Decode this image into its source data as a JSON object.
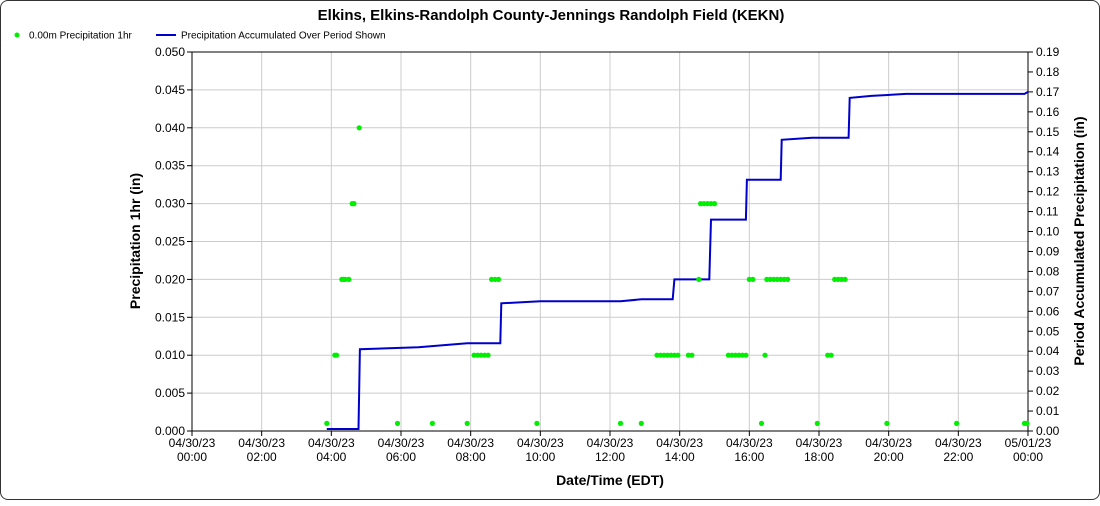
{
  "chart_data": {
    "type": "scatter",
    "title": "Elkins, Elkins-Randolph County-Jennings Randolph Field (KEKN)",
    "xlabel": "Date/Time (EDT)",
    "ylabel": "Precipitation 1hr (in)",
    "y2label": "Period Accumulated Precipitation (in)",
    "xlim": [
      0,
      24
    ],
    "ylim": [
      0,
      0.05
    ],
    "y2lim": [
      0,
      0.19
    ],
    "grid": true,
    "legend_position": "top-left",
    "x_ticks": [
      {
        "value": 0,
        "date": "04/30/23",
        "time": "00:00"
      },
      {
        "value": 2,
        "date": "04/30/23",
        "time": "02:00"
      },
      {
        "value": 4,
        "date": "04/30/23",
        "time": "04:00"
      },
      {
        "value": 6,
        "date": "04/30/23",
        "time": "06:00"
      },
      {
        "value": 8,
        "date": "04/30/23",
        "time": "08:00"
      },
      {
        "value": 10,
        "date": "04/30/23",
        "time": "10:00"
      },
      {
        "value": 12,
        "date": "04/30/23",
        "time": "12:00"
      },
      {
        "value": 14,
        "date": "04/30/23",
        "time": "14:00"
      },
      {
        "value": 16,
        "date": "04/30/23",
        "time": "16:00"
      },
      {
        "value": 18,
        "date": "04/30/23",
        "time": "18:00"
      },
      {
        "value": 20,
        "date": "04/30/23",
        "time": "20:00"
      },
      {
        "value": 22,
        "date": "04/30/23",
        "time": "22:00"
      },
      {
        "value": 24,
        "date": "05/01/23",
        "time": "00:00"
      }
    ],
    "y_ticks": [
      "0.000",
      "0.005",
      "0.010",
      "0.015",
      "0.020",
      "0.025",
      "0.030",
      "0.035",
      "0.040",
      "0.045",
      "0.050"
    ],
    "y2_ticks": [
      "0.00",
      "0.01",
      "0.02",
      "0.03",
      "0.04",
      "0.05",
      "0.06",
      "0.07",
      "0.08",
      "0.09",
      "0.10",
      "0.11",
      "0.12",
      "0.13",
      "0.14",
      "0.15",
      "0.16",
      "0.17",
      "0.18",
      "0.19"
    ],
    "series": [
      {
        "name": "0.00m Precipitation 1hr",
        "color": "#00ee00",
        "axis": "left",
        "x": [
          3.87,
          4.1,
          4.15,
          4.3,
          4.35,
          4.4,
          4.5,
          4.6,
          4.65,
          4.8,
          5.9,
          6.9,
          7.9,
          8.1,
          8.2,
          8.3,
          8.4,
          8.5,
          8.6,
          8.7,
          8.8,
          9.9,
          12.3,
          12.9,
          13.35,
          13.45,
          13.55,
          13.65,
          13.75,
          13.85,
          13.95,
          14.25,
          14.35,
          14.55,
          14.6,
          14.7,
          14.8,
          14.9,
          15,
          15.4,
          15.5,
          15.6,
          15.7,
          15.8,
          15.9,
          16.0,
          16.1,
          16.35,
          16.45,
          16.5,
          16.6,
          16.7,
          16.8,
          16.9,
          17.0,
          17.1,
          17.95,
          18.25,
          18.35,
          18.45,
          18.55,
          18.65,
          18.75,
          19.95,
          21.95,
          23.9,
          23.97
        ],
        "y": [
          0.001,
          0.01,
          0.01,
          0.02,
          0.02,
          0.02,
          0.02,
          0.03,
          0.03,
          0.04,
          0.001,
          0.001,
          0.001,
          0.01,
          0.01,
          0.01,
          0.01,
          0.01,
          0.02,
          0.02,
          0.02,
          0.001,
          0.001,
          0.001,
          0.01,
          0.01,
          0.01,
          0.01,
          0.01,
          0.01,
          0.01,
          0.01,
          0.01,
          0.02,
          0.03,
          0.03,
          0.03,
          0.03,
          0.03,
          0.01,
          0.01,
          0.01,
          0.01,
          0.01,
          0.01,
          0.02,
          0.02,
          0.001,
          0.01,
          0.02,
          0.02,
          0.02,
          0.02,
          0.02,
          0.02,
          0.02,
          0.001,
          0.01,
          0.01,
          0.02,
          0.02,
          0.02,
          0.02,
          0.001,
          0.001,
          0.001,
          0.001
        ]
      },
      {
        "name": "Precipitation Accumulated Over Period Shown",
        "color": "#0000cc",
        "axis": "right",
        "x": [
          3.87,
          4.78,
          4.82,
          6.5,
          7.9,
          8.85,
          8.88,
          10,
          12.3,
          12.9,
          13.8,
          13.85,
          14.85,
          14.9,
          15.9,
          15.93,
          16.9,
          16.93,
          17.8,
          18.85,
          18.88,
          19.5,
          20.5,
          22.0,
          23.9,
          24
        ],
        "y": [
          0.001,
          0.001,
          0.041,
          0.042,
          0.044,
          0.044,
          0.064,
          0.065,
          0.065,
          0.066,
          0.066,
          0.076,
          0.076,
          0.106,
          0.106,
          0.126,
          0.126,
          0.146,
          0.147,
          0.147,
          0.167,
          0.168,
          0.169,
          0.169,
          0.169,
          0.17
        ]
      }
    ]
  }
}
